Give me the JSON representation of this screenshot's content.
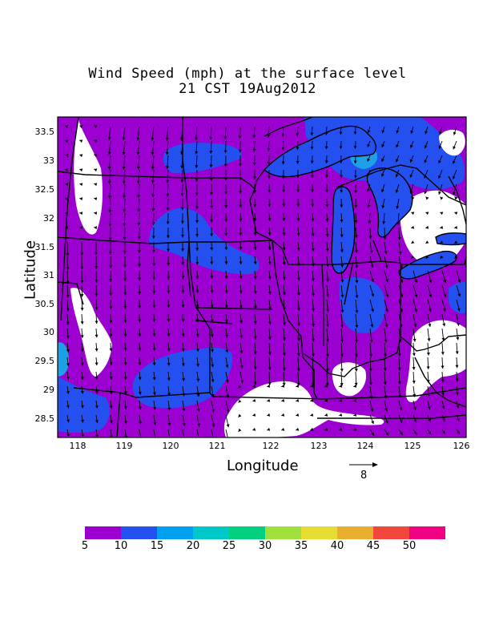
{
  "title": {
    "line1": "Wind Speed (mph) at the surface level",
    "line2": "21 CST 19Aug2012"
  },
  "axes": {
    "xlabel": "Longitude",
    "ylabel": "Latitude",
    "xticks": [
      "118",
      "119",
      "120",
      "121",
      "122",
      "123",
      "124",
      "125",
      "126"
    ],
    "yticks": [
      "33.5",
      "33",
      "32.5",
      "32",
      "31.5",
      "31",
      "30.5",
      "30",
      "29.5",
      "29",
      "28.5"
    ]
  },
  "reference_vector": {
    "label": "8"
  },
  "colorbar": {
    "labels": [
      "5",
      "10",
      "15",
      "20",
      "25",
      "30",
      "35",
      "40",
      "45",
      "50"
    ],
    "colors": [
      "#9b00d0",
      "#2450f0",
      "#00a0f0",
      "#00c8c8",
      "#00d080",
      "#a0e03c",
      "#e6dc32",
      "#e6af2d",
      "#f0463c",
      "#f00082"
    ]
  },
  "colors": {
    "base": "#9b00d0",
    "blue": "#2450f0",
    "cyan": "#1ea0e6",
    "calm": "#ffffff",
    "lines": "#000000"
  }
}
